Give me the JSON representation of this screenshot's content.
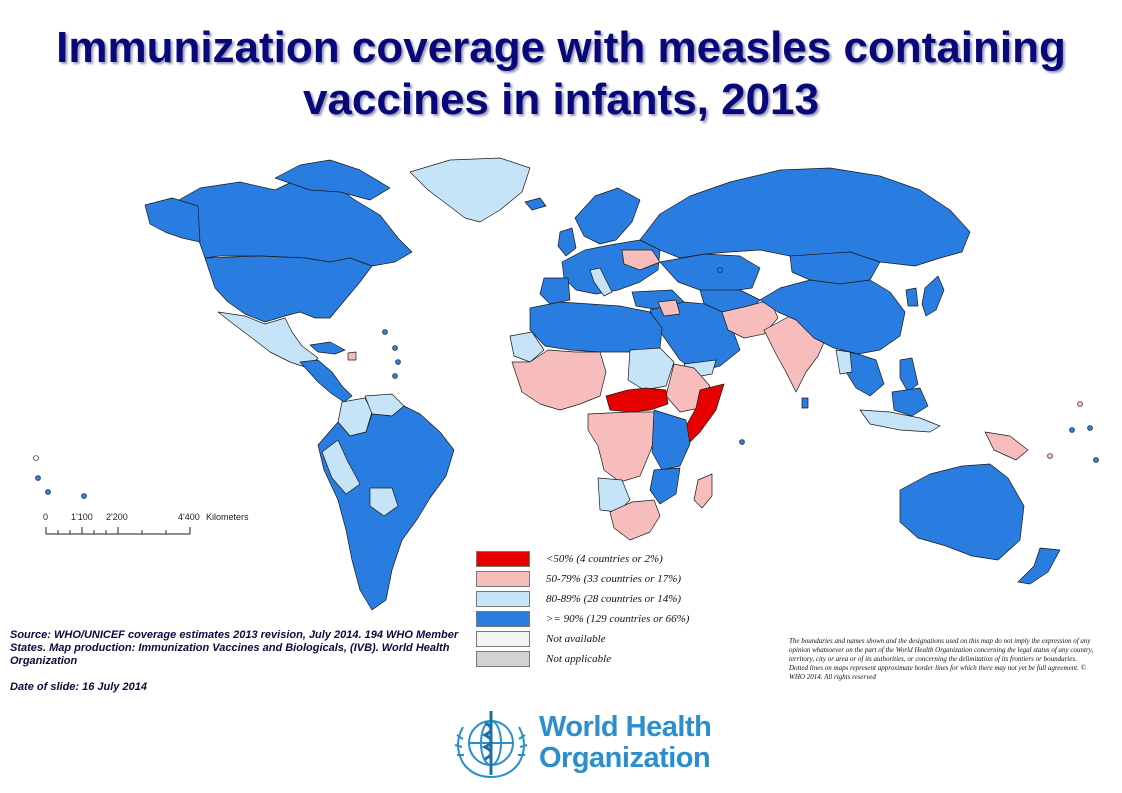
{
  "title_line1": "Immunization coverage with measles containing",
  "title_line2": "vaccines in infants, 2013",
  "colors": {
    "lt50": "#e60000",
    "c50_79": "#f7bdbd",
    "c80_89": "#c6e4f7",
    "ge90": "#2a7de0",
    "not_available": "#f4f4f4",
    "not_applicable": "#d2d2d2",
    "ocean": "#ffffff",
    "border": "#1a1a1a",
    "title_color": "#08087a",
    "who_blue": "#2a8fcc"
  },
  "scale_bar": {
    "labels": [
      "0",
      "1'100",
      "2'200",
      "4'400"
    ],
    "unit": "Kilometers"
  },
  "legend": [
    {
      "label": "<50%  (4 countries  or 2%)",
      "color_key": "lt50"
    },
    {
      "label": "50-79%  (33 countries  or 17%)",
      "color_key": "c50_79"
    },
    {
      "label": "80-89%  (28 countries  or 14%)",
      "color_key": "c80_89"
    },
    {
      "label": ">= 90%  (129 countries  or 66%)",
      "color_key": "ge90"
    },
    {
      "label": "Not available",
      "color_key": "not_available"
    },
    {
      "label": "Not applicable",
      "color_key": "not_applicable"
    }
  ],
  "source_text": "Source: WHO/UNICEF coverage estimates 2013 revision, July 2014.  194 WHO Member States. Map production:  Immunization  Vaccines and Biologicals, (IVB). World Health Organization",
  "date_text": "Date of slide: 16 July  2014",
  "disclaimer": "The boundaries and names shown and the designations used on this map do not imply the expression of any opinion whatsoever on the part of the World Health Organization concerning the legal status of any country, territory, city or area or of its authorities, or concerning the delimitation of its frontiers or boundaries.  Dotted lines on maps represent approximate border lines for which there may not yet be full agreement. © WHO 2014. All rights reserved",
  "org_line1": "World Health",
  "org_line2": "Organization"
}
